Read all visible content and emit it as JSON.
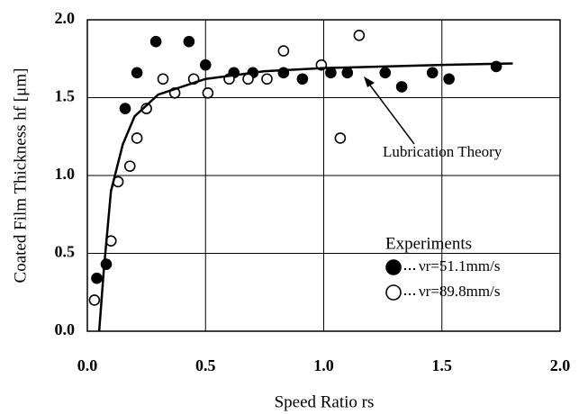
{
  "chart_data": {
    "type": "scatter",
    "xlabel": "Speed Ratio rs",
    "ylabel": "Coated Film Thickness hf [μm]",
    "xlim": [
      0,
      2
    ],
    "ylim": [
      0,
      2
    ],
    "xticks": [
      {
        "value": 0,
        "label": "0.0"
      },
      0.5,
      {
        "value": 1,
        "label": "1.0"
      },
      1.5,
      {
        "value": 2,
        "label": "2.0"
      }
    ],
    "yticks": [
      {
        "value": 0,
        "label": "0.0"
      },
      0.5,
      {
        "value": 1,
        "label": "1.0"
      },
      1.5,
      {
        "value": 2,
        "label": "2.0"
      }
    ],
    "grid": true,
    "legend_title": "Experiments",
    "legend": "lower right",
    "series": [
      {
        "name": "νr=51.1mm/s",
        "color": "#000",
        "marker": "filled",
        "x": [
          0.04,
          0.08,
          0.16,
          0.21,
          0.29,
          0.43,
          0.5,
          0.62,
          0.7,
          0.83,
          0.91,
          1.03,
          1.1,
          1.26,
          1.33,
          1.46,
          1.53,
          1.73
        ],
        "values": [
          0.34,
          0.43,
          1.43,
          1.66,
          1.86,
          1.86,
          1.71,
          1.66,
          1.66,
          1.66,
          1.62,
          1.66,
          1.66,
          1.66,
          1.57,
          1.66,
          1.62,
          1.7
        ]
      },
      {
        "name": "νr=89.8mm/s",
        "color": "#000",
        "marker": "open",
        "x": [
          0.03,
          0.1,
          0.13,
          0.18,
          0.21,
          0.25,
          0.32,
          0.37,
          0.45,
          0.51,
          0.6,
          0.68,
          0.76,
          0.83,
          0.99,
          1.07,
          1.15
        ],
        "values": [
          0.2,
          0.58,
          0.96,
          1.06,
          1.24,
          1.43,
          1.62,
          1.53,
          1.62,
          1.53,
          1.62,
          1.62,
          1.62,
          1.8,
          1.71,
          1.24,
          1.9
        ]
      },
      {
        "name": "Lubrication Theory",
        "color": "#000",
        "marker": "line",
        "x": [
          0.05,
          0.07,
          0.1,
          0.15,
          0.2,
          0.3,
          0.5,
          0.75,
          1,
          1.5,
          1.8
        ],
        "values": [
          0,
          0.4,
          0.9,
          1.2,
          1.38,
          1.52,
          1.62,
          1.67,
          1.69,
          1.71,
          1.72
        ]
      }
    ]
  }
}
